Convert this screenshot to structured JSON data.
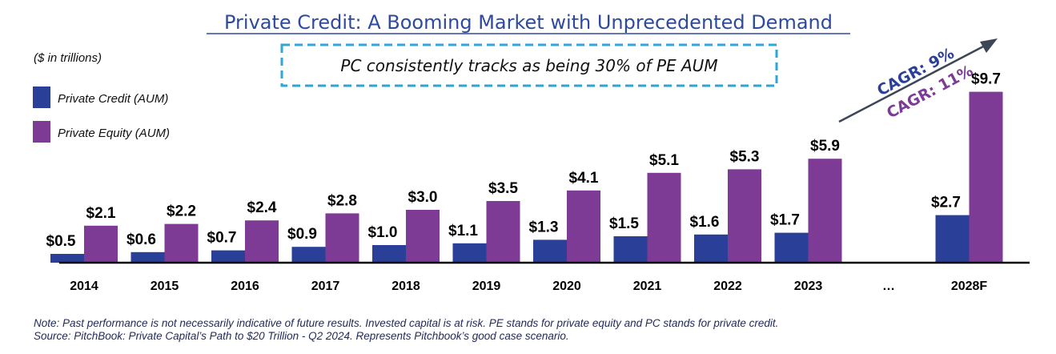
{
  "chart_data": {
    "type": "bar",
    "title": "Private Credit: A Booming Market with Unprecedented Demand",
    "unit_note": "($ in trillions)",
    "callout": "PC consistently tracks as being 30% of PE AUM",
    "categories": [
      "2014",
      "2015",
      "2016",
      "2017",
      "2018",
      "2019",
      "2020",
      "2021",
      "2022",
      "2023",
      "…",
      "2028F"
    ],
    "series": [
      {
        "name": "Private Credit (AUM)",
        "color": "#2a3f98",
        "values": [
          0.5,
          0.6,
          0.7,
          0.9,
          1.0,
          1.1,
          1.3,
          1.5,
          1.6,
          1.7,
          null,
          2.7
        ],
        "labels": [
          "$0.5",
          "$0.6",
          "$0.7",
          "$0.9",
          "$1.0",
          "$1.1",
          "$1.3",
          "$1.5",
          "$1.6",
          "$1.7",
          "",
          "$2.7"
        ]
      },
      {
        "name": "Private Equity (AUM)",
        "color": "#7d3b96",
        "values": [
          2.1,
          2.2,
          2.4,
          2.8,
          3.0,
          3.5,
          4.1,
          5.1,
          5.3,
          5.9,
          null,
          9.7
        ],
        "labels": [
          "$2.1",
          "$2.2",
          "$2.4",
          "$2.8",
          "$3.0",
          "$3.5",
          "$4.1",
          "$5.1",
          "$5.3",
          "$5.9",
          "",
          "$9.7"
        ]
      }
    ],
    "annotations": [
      {
        "text": "CAGR: 9%",
        "color": "#2a3f98"
      },
      {
        "text": "CAGR: 11%",
        "color": "#7d3b96"
      }
    ],
    "legend": "top-left",
    "grid": false,
    "ylim": [
      0,
      10
    ]
  },
  "footnotes": [
    "Note: Past performance is not necessarily indicative of future results. Invested capital is at risk. PE stands for private equity and PC stands for private credit.",
    "Source: PitchBook: Private Capital’s Path to $20 Trillion - Q2 2024. Represents Pitchbook’s good case scenario."
  ]
}
